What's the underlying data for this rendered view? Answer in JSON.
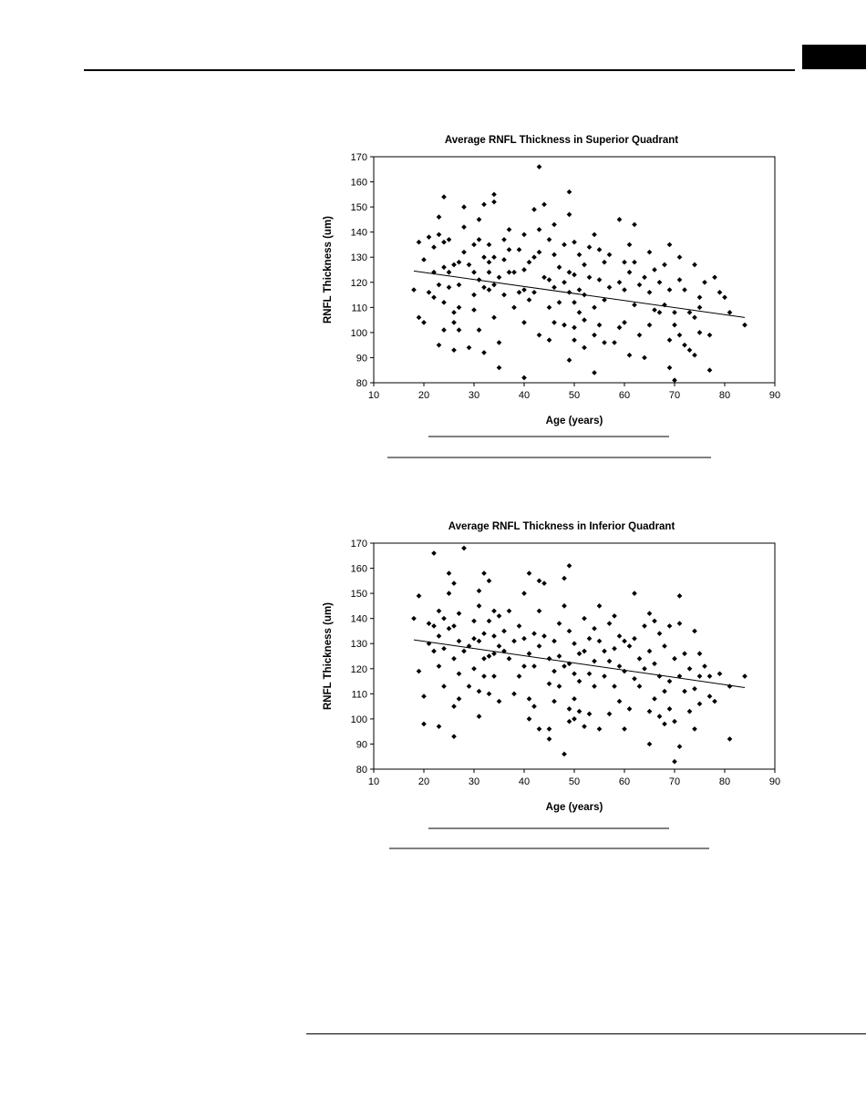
{
  "page": {
    "rule_color": "#000000",
    "tab_color": "#000000"
  },
  "chart_data": [
    {
      "type": "scatter",
      "title": "Average RNFL Thickness in Superior Quadrant",
      "xlabel": "Age (years)",
      "ylabel": "RNFL Thickness (um)",
      "xlim": [
        10,
        90
      ],
      "ylim": [
        80,
        170
      ],
      "xticks": [
        10,
        20,
        30,
        40,
        50,
        60,
        70,
        80,
        90
      ],
      "yticks": [
        80,
        90,
        100,
        110,
        120,
        130,
        140,
        150,
        160,
        170
      ],
      "grid": false,
      "legend": "none",
      "marker_color": "#000000",
      "trendline": {
        "x": [
          18,
          84
        ],
        "y": [
          124.5,
          106.0
        ]
      },
      "points": [
        [
          18,
          117
        ],
        [
          19,
          136
        ],
        [
          19,
          106
        ],
        [
          20,
          104
        ],
        [
          20,
          129
        ],
        [
          21,
          138
        ],
        [
          21,
          116
        ],
        [
          22,
          134
        ],
        [
          22,
          124
        ],
        [
          22,
          114
        ],
        [
          23,
          146
        ],
        [
          23,
          139
        ],
        [
          23,
          119
        ],
        [
          23,
          95
        ],
        [
          24,
          154
        ],
        [
          24,
          136
        ],
        [
          24,
          126
        ],
        [
          24,
          112
        ],
        [
          24,
          101
        ],
        [
          25,
          137
        ],
        [
          25,
          124
        ],
        [
          25,
          118
        ],
        [
          26,
          127
        ],
        [
          26,
          108
        ],
        [
          26,
          104
        ],
        [
          26,
          93
        ],
        [
          27,
          128
        ],
        [
          27,
          119
        ],
        [
          27,
          110
        ],
        [
          27,
          101
        ],
        [
          28,
          150
        ],
        [
          28,
          142
        ],
        [
          28,
          132
        ],
        [
          29,
          127
        ],
        [
          29,
          94
        ],
        [
          30,
          135
        ],
        [
          30,
          124
        ],
        [
          30,
          115
        ],
        [
          30,
          109
        ],
        [
          31,
          145
        ],
        [
          31,
          137
        ],
        [
          31,
          121
        ],
        [
          31,
          101
        ],
        [
          32,
          151
        ],
        [
          32,
          130
        ],
        [
          32,
          118
        ],
        [
          32,
          92
        ],
        [
          33,
          135
        ],
        [
          33,
          128
        ],
        [
          33,
          124
        ],
        [
          33,
          117
        ],
        [
          34,
          155
        ],
        [
          34,
          152
        ],
        [
          34,
          130
        ],
        [
          34,
          119
        ],
        [
          34,
          106
        ],
        [
          35,
          122
        ],
        [
          35,
          96
        ],
        [
          35,
          86
        ],
        [
          36,
          137
        ],
        [
          36,
          129
        ],
        [
          36,
          115
        ],
        [
          37,
          141
        ],
        [
          37,
          133
        ],
        [
          37,
          124
        ],
        [
          38,
          124
        ],
        [
          38,
          110
        ],
        [
          39,
          133
        ],
        [
          39,
          116
        ],
        [
          40,
          139
        ],
        [
          40,
          125
        ],
        [
          40,
          117
        ],
        [
          40,
          104
        ],
        [
          40,
          82
        ],
        [
          41,
          128
        ],
        [
          41,
          113
        ],
        [
          42,
          149
        ],
        [
          42,
          130
        ],
        [
          42,
          116
        ],
        [
          43,
          166
        ],
        [
          43,
          141
        ],
        [
          43,
          132
        ],
        [
          43,
          99
        ],
        [
          44,
          151
        ],
        [
          44,
          122
        ],
        [
          45,
          137
        ],
        [
          45,
          121
        ],
        [
          45,
          110
        ],
        [
          45,
          97
        ],
        [
          46,
          143
        ],
        [
          46,
          131
        ],
        [
          46,
          118
        ],
        [
          46,
          104
        ],
        [
          47,
          126
        ],
        [
          47,
          112
        ],
        [
          48,
          135
        ],
        [
          48,
          120
        ],
        [
          48,
          103
        ],
        [
          49,
          156
        ],
        [
          49,
          147
        ],
        [
          49,
          124
        ],
        [
          49,
          116
        ],
        [
          49,
          89
        ],
        [
          50,
          136
        ],
        [
          50,
          123
        ],
        [
          50,
          112
        ],
        [
          50,
          102
        ],
        [
          50,
          97
        ],
        [
          51,
          131
        ],
        [
          51,
          117
        ],
        [
          51,
          108
        ],
        [
          52,
          127
        ],
        [
          52,
          115
        ],
        [
          52,
          105
        ],
        [
          52,
          94
        ],
        [
          53,
          134
        ],
        [
          53,
          122
        ],
        [
          54,
          139
        ],
        [
          54,
          110
        ],
        [
          54,
          99
        ],
        [
          54,
          84
        ],
        [
          55,
          133
        ],
        [
          55,
          121
        ],
        [
          55,
          103
        ],
        [
          56,
          128
        ],
        [
          56,
          113
        ],
        [
          56,
          96
        ],
        [
          57,
          131
        ],
        [
          57,
          118
        ],
        [
          58,
          96
        ],
        [
          59,
          145
        ],
        [
          59,
          120
        ],
        [
          59,
          102
        ],
        [
          60,
          128
        ],
        [
          60,
          117
        ],
        [
          60,
          104
        ],
        [
          61,
          135
        ],
        [
          61,
          124
        ],
        [
          61,
          91
        ],
        [
          62,
          143
        ],
        [
          62,
          128
        ],
        [
          62,
          111
        ],
        [
          63,
          119
        ],
        [
          63,
          99
        ],
        [
          64,
          122
        ],
        [
          64,
          90
        ],
        [
          65,
          132
        ],
        [
          65,
          116
        ],
        [
          65,
          103
        ],
        [
          66,
          125
        ],
        [
          66,
          109
        ],
        [
          67,
          120
        ],
        [
          67,
          108
        ],
        [
          68,
          127
        ],
        [
          68,
          111
        ],
        [
          69,
          135
        ],
        [
          69,
          117
        ],
        [
          69,
          97
        ],
        [
          69,
          86
        ],
        [
          70,
          108
        ],
        [
          70,
          103
        ],
        [
          70,
          81
        ],
        [
          71,
          130
        ],
        [
          71,
          121
        ],
        [
          71,
          99
        ],
        [
          72,
          117
        ],
        [
          72,
          95
        ],
        [
          73,
          108
        ],
        [
          73,
          93
        ],
        [
          74,
          127
        ],
        [
          74,
          106
        ],
        [
          74,
          91
        ],
        [
          75,
          114
        ],
        [
          75,
          110
        ],
        [
          75,
          100
        ],
        [
          76,
          120
        ],
        [
          77,
          99
        ],
        [
          77,
          85
        ],
        [
          78,
          122
        ],
        [
          79,
          116
        ],
        [
          80,
          114
        ],
        [
          81,
          108
        ],
        [
          84,
          103
        ]
      ]
    },
    {
      "type": "scatter",
      "title": "Average RNFL Thickness in Inferior Quadrant",
      "xlabel": "Age (years)",
      "ylabel": "RNFL Thickness (um)",
      "xlim": [
        10,
        90
      ],
      "ylim": [
        80,
        170
      ],
      "xticks": [
        10,
        20,
        30,
        40,
        50,
        60,
        70,
        80,
        90
      ],
      "yticks": [
        80,
        90,
        100,
        110,
        120,
        130,
        140,
        150,
        160,
        170
      ],
      "grid": false,
      "legend": "none",
      "marker_color": "#000000",
      "trendline": {
        "x": [
          18,
          84
        ],
        "y": [
          131.5,
          112.5
        ]
      },
      "points": [
        [
          18,
          140
        ],
        [
          19,
          149
        ],
        [
          19,
          119
        ],
        [
          20,
          109
        ],
        [
          20,
          98
        ],
        [
          21,
          138
        ],
        [
          21,
          130
        ],
        [
          22,
          166
        ],
        [
          22,
          137
        ],
        [
          22,
          127
        ],
        [
          23,
          143
        ],
        [
          23,
          133
        ],
        [
          23,
          121
        ],
        [
          23,
          97
        ],
        [
          24,
          140
        ],
        [
          24,
          128
        ],
        [
          24,
          113
        ],
        [
          25,
          158
        ],
        [
          25,
          150
        ],
        [
          25,
          136
        ],
        [
          26,
          154
        ],
        [
          26,
          137
        ],
        [
          26,
          124
        ],
        [
          26,
          105
        ],
        [
          26,
          93
        ],
        [
          27,
          142
        ],
        [
          27,
          131
        ],
        [
          27,
          118
        ],
        [
          27,
          108
        ],
        [
          28,
          168
        ],
        [
          28,
          127
        ],
        [
          29,
          129
        ],
        [
          29,
          113
        ],
        [
          30,
          139
        ],
        [
          30,
          132
        ],
        [
          30,
          120
        ],
        [
          31,
          151
        ],
        [
          31,
          145
        ],
        [
          31,
          131
        ],
        [
          31,
          111
        ],
        [
          31,
          101
        ],
        [
          32,
          158
        ],
        [
          32,
          134
        ],
        [
          32,
          124
        ],
        [
          32,
          117
        ],
        [
          33,
          155
        ],
        [
          33,
          139
        ],
        [
          33,
          125
        ],
        [
          33,
          110
        ],
        [
          34,
          143
        ],
        [
          34,
          133
        ],
        [
          34,
          126
        ],
        [
          34,
          117
        ],
        [
          35,
          141
        ],
        [
          35,
          129
        ],
        [
          35,
          107
        ],
        [
          36,
          135
        ],
        [
          36,
          127
        ],
        [
          37,
          143
        ],
        [
          37,
          124
        ],
        [
          38,
          131
        ],
        [
          38,
          110
        ],
        [
          39,
          137
        ],
        [
          39,
          117
        ],
        [
          40,
          150
        ],
        [
          40,
          132
        ],
        [
          40,
          121
        ],
        [
          41,
          158
        ],
        [
          41,
          126
        ],
        [
          41,
          108
        ],
        [
          41,
          100
        ],
        [
          42,
          134
        ],
        [
          42,
          121
        ],
        [
          42,
          105
        ],
        [
          43,
          155
        ],
        [
          43,
          143
        ],
        [
          43,
          129
        ],
        [
          43,
          96
        ],
        [
          44,
          154
        ],
        [
          44,
          133
        ],
        [
          45,
          124
        ],
        [
          45,
          114
        ],
        [
          45,
          96
        ],
        [
          45,
          92
        ],
        [
          46,
          131
        ],
        [
          46,
          119
        ],
        [
          46,
          107
        ],
        [
          47,
          138
        ],
        [
          47,
          125
        ],
        [
          47,
          113
        ],
        [
          48,
          156
        ],
        [
          48,
          145
        ],
        [
          48,
          121
        ],
        [
          48,
          86
        ],
        [
          49,
          161
        ],
        [
          49,
          135
        ],
        [
          49,
          122
        ],
        [
          49,
          104
        ],
        [
          49,
          99
        ],
        [
          50,
          130
        ],
        [
          50,
          118
        ],
        [
          50,
          108
        ],
        [
          50,
          100
        ],
        [
          51,
          126
        ],
        [
          51,
          115
        ],
        [
          51,
          103
        ],
        [
          52,
          140
        ],
        [
          52,
          127
        ],
        [
          52,
          97
        ],
        [
          53,
          132
        ],
        [
          53,
          118
        ],
        [
          53,
          102
        ],
        [
          54,
          136
        ],
        [
          54,
          123
        ],
        [
          54,
          113
        ],
        [
          55,
          145
        ],
        [
          55,
          131
        ],
        [
          55,
          96
        ],
        [
          56,
          127
        ],
        [
          56,
          117
        ],
        [
          57,
          138
        ],
        [
          57,
          123
        ],
        [
          57,
          102
        ],
        [
          58,
          141
        ],
        [
          58,
          128
        ],
        [
          58,
          113
        ],
        [
          59,
          133
        ],
        [
          59,
          121
        ],
        [
          59,
          107
        ],
        [
          60,
          131
        ],
        [
          60,
          119
        ],
        [
          60,
          96
        ],
        [
          61,
          129
        ],
        [
          61,
          104
        ],
        [
          62,
          150
        ],
        [
          62,
          132
        ],
        [
          62,
          116
        ],
        [
          63,
          124
        ],
        [
          63,
          113
        ],
        [
          64,
          137
        ],
        [
          64,
          120
        ],
        [
          65,
          142
        ],
        [
          65,
          127
        ],
        [
          65,
          103
        ],
        [
          65,
          90
        ],
        [
          66,
          139
        ],
        [
          66,
          122
        ],
        [
          66,
          108
        ],
        [
          67,
          134
        ],
        [
          67,
          117
        ],
        [
          67,
          101
        ],
        [
          68,
          129
        ],
        [
          68,
          111
        ],
        [
          68,
          98
        ],
        [
          69,
          137
        ],
        [
          69,
          115
        ],
        [
          69,
          104
        ],
        [
          70,
          124
        ],
        [
          70,
          99
        ],
        [
          70,
          83
        ],
        [
          71,
          149
        ],
        [
          71,
          138
        ],
        [
          71,
          117
        ],
        [
          71,
          89
        ],
        [
          72,
          126
        ],
        [
          72,
          111
        ],
        [
          73,
          120
        ],
        [
          73,
          103
        ],
        [
          74,
          135
        ],
        [
          74,
          112
        ],
        [
          74,
          96
        ],
        [
          75,
          126
        ],
        [
          75,
          117
        ],
        [
          75,
          106
        ],
        [
          76,
          121
        ],
        [
          77,
          117
        ],
        [
          77,
          109
        ],
        [
          78,
          107
        ],
        [
          79,
          118
        ],
        [
          81,
          113
        ],
        [
          81,
          92
        ],
        [
          84,
          117
        ]
      ]
    }
  ]
}
